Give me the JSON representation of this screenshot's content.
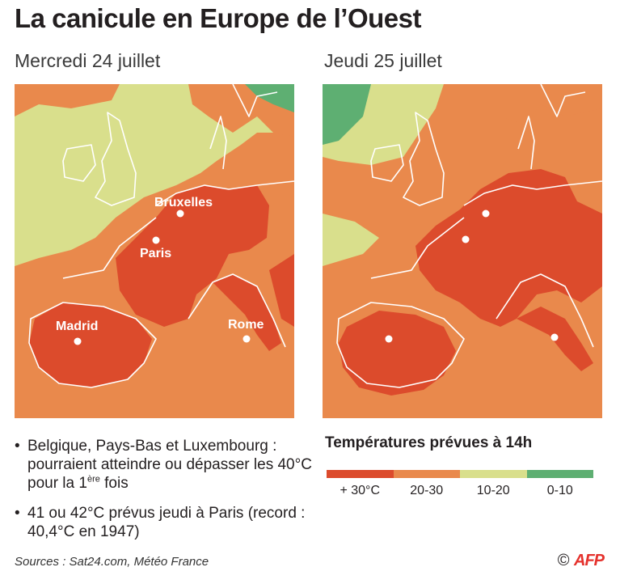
{
  "title": "La canicule en Europe de l’Ouest",
  "maps": [
    {
      "date": "Mercredi 24 juillet",
      "cities": [
        {
          "name": "Bruxelles"
        },
        {
          "name": "Paris"
        },
        {
          "name": "Madrid"
        },
        {
          "name": "Rome"
        }
      ]
    },
    {
      "date": "Jeudi 25 juillet",
      "cities": []
    }
  ],
  "bullets": [
    {
      "text": "Belgique, Pays-Bas et Luxembourg : pourraient atteindre ou dépasser les 40°C pour la 1",
      "sup": "ère",
      "tail": " fois"
    },
    {
      "text": "41 ou 42°C prévus jeudi à Paris (record : 40,4°C en 1947)"
    }
  ],
  "legend": {
    "title": "Températures prévues à 14h",
    "items": [
      {
        "label": "+ 30°C",
        "color": "#dc4b2c"
      },
      {
        "label": "20-30",
        "color": "#e9894c"
      },
      {
        "label": "10-20",
        "color": "#d9df8c"
      },
      {
        "label": "0-10",
        "color": "#5eaf72"
      }
    ]
  },
  "sources": "Sources : Sat24.com, Météo France",
  "credit": {
    "copyright": "©",
    "agency": "AFP"
  }
}
